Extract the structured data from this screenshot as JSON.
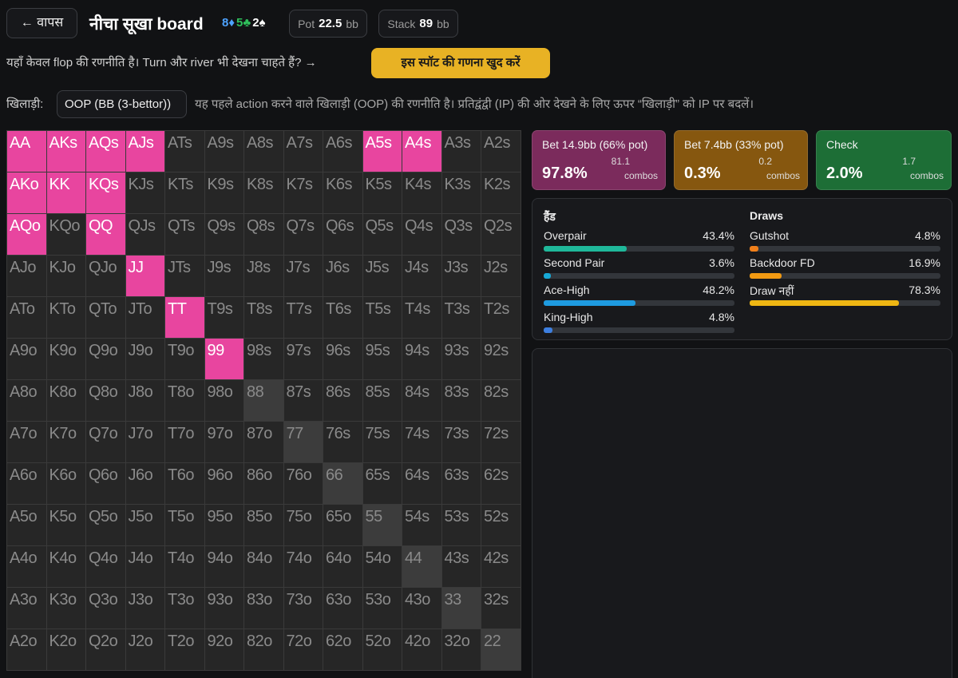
{
  "header": {
    "back_button": "← वापस",
    "title": "नीचा सूखा board",
    "board": [
      {
        "text": "8♦",
        "color": "#4da3ff"
      },
      {
        "text": "5♣",
        "color": "#2fbf5b"
      },
      {
        "text": "2♠",
        "color": "#ffffff"
      }
    ],
    "pot": {
      "label": "Pot",
      "value": "22.5",
      "unit": "bb"
    },
    "stack": {
      "label": "Stack",
      "value": "89",
      "unit": "bb"
    }
  },
  "notice": {
    "text": "यहाँ केवल flop की रणनीति है। Turn और river भी देखना चाहते हैं? →",
    "button": "इस स्पॉट की गणना खुद करें"
  },
  "player": {
    "label": "खिलाड़ी:",
    "select": "OOP (BB (3-bettor))",
    "description": "यह पहले action करने वाले खिलाड़ी (OOP) की रणनीति है। प्रतिद्वंद्वी (IP) की ओर देखने के लिए ऊपर “खिलाड़ी” को IP पर बदलें।"
  },
  "grid": {
    "rows": [
      {
        "hands": [
          "AA",
          "AKs",
          "AQs",
          "AJs",
          "ATs",
          "A9s",
          "A8s",
          "A7s",
          "A6s",
          "A5s",
          "A4s",
          "A3s",
          "A2s"
        ],
        "fills": [
          "#e8459f",
          "#e8459f",
          "#e8459f",
          "#e8459f",
          "#262626",
          "#262626",
          "#262626",
          "#262626",
          "#262626",
          "#e8459f",
          "#e8459f",
          "#262626",
          "#262626"
        ]
      },
      {
        "hands": [
          "AKo",
          "KK",
          "KQs",
          "KJs",
          "KTs",
          "K9s",
          "K8s",
          "K7s",
          "K6s",
          "K5s",
          "K4s",
          "K3s",
          "K2s"
        ],
        "fills": [
          "#e8459f",
          "#e8459f",
          "#e8459f",
          "#262626",
          "#262626",
          "#262626",
          "#262626",
          "#262626",
          "#262626",
          "#262626",
          "#262626",
          "#262626",
          "#262626"
        ]
      },
      {
        "hands": [
          "AQo",
          "KQo",
          "QQ",
          "QJs",
          "QTs",
          "Q9s",
          "Q8s",
          "Q7s",
          "Q6s",
          "Q5s",
          "Q4s",
          "Q3s",
          "Q2s"
        ],
        "fills": [
          "#e8459f",
          "#262626",
          "#e8459f",
          "#262626",
          "#262626",
          "#262626",
          "#262626",
          "#262626",
          "#262626",
          "#262626",
          "#262626",
          "#262626",
          "#262626"
        ]
      },
      {
        "hands": [
          "AJo",
          "KJo",
          "QJo",
          "JJ",
          "JTs",
          "J9s",
          "J8s",
          "J7s",
          "J6s",
          "J5s",
          "J4s",
          "J3s",
          "J2s"
        ],
        "fills": [
          "#262626",
          "#262626",
          "#262626",
          "#e8459f",
          "#262626",
          "#262626",
          "#262626",
          "#262626",
          "#262626",
          "#262626",
          "#262626",
          "#262626",
          "#262626"
        ]
      },
      {
        "hands": [
          "ATo",
          "KTo",
          "QTo",
          "JTo",
          "TT",
          "T9s",
          "T8s",
          "T7s",
          "T6s",
          "T5s",
          "T4s",
          "T3s",
          "T2s"
        ],
        "fills": [
          "#262626",
          "#262626",
          "#262626",
          "#262626",
          "#e8459f",
          "#262626",
          "#262626",
          "#262626",
          "#262626",
          "#262626",
          "#262626",
          "#262626",
          "#262626"
        ]
      },
      {
        "hands": [
          "A9o",
          "K9o",
          "Q9o",
          "J9o",
          "T9o",
          "99",
          "98s",
          "97s",
          "96s",
          "95s",
          "94s",
          "93s",
          "92s"
        ],
        "fills": [
          "#262626",
          "#262626",
          "#262626",
          "#262626",
          "#262626",
          "#e8459f",
          "#262626",
          "#262626",
          "#262626",
          "#262626",
          "#262626",
          "#262626",
          "#262626"
        ]
      },
      {
        "hands": [
          "A8o",
          "K8o",
          "Q8o",
          "J8o",
          "T8o",
          "98o",
          "88",
          "87s",
          "86s",
          "85s",
          "84s",
          "83s",
          "82s"
        ],
        "fills": [
          "#262626",
          "#262626",
          "#262626",
          "#262626",
          "#262626",
          "#262626",
          "#3c3c3c",
          "#262626",
          "#262626",
          "#262626",
          "#262626",
          "#262626",
          "#262626"
        ]
      },
      {
        "hands": [
          "A7o",
          "K7o",
          "Q7o",
          "J7o",
          "T7o",
          "97o",
          "87o",
          "77",
          "76s",
          "75s",
          "74s",
          "73s",
          "72s"
        ],
        "fills": [
          "#262626",
          "#262626",
          "#262626",
          "#262626",
          "#262626",
          "#262626",
          "#262626",
          "#3c3c3c",
          "#262626",
          "#262626",
          "#262626",
          "#262626",
          "#262626"
        ]
      },
      {
        "hands": [
          "A6o",
          "K6o",
          "Q6o",
          "J6o",
          "T6o",
          "96o",
          "86o",
          "76o",
          "66",
          "65s",
          "64s",
          "63s",
          "62s"
        ],
        "fills": [
          "#262626",
          "#262626",
          "#262626",
          "#262626",
          "#262626",
          "#262626",
          "#262626",
          "#262626",
          "#3c3c3c",
          "#262626",
          "#262626",
          "#262626",
          "#262626"
        ]
      },
      {
        "hands": [
          "A5o",
          "K5o",
          "Q5o",
          "J5o",
          "T5o",
          "95o",
          "85o",
          "75o",
          "65o",
          "55",
          "54s",
          "53s",
          "52s"
        ],
        "fills": [
          "#262626",
          "#262626",
          "#262626",
          "#262626",
          "#262626",
          "#262626",
          "#262626",
          "#262626",
          "#262626",
          "#3c3c3c",
          "#262626",
          "#262626",
          "#262626"
        ]
      },
      {
        "hands": [
          "A4o",
          "K4o",
          "Q4o",
          "J4o",
          "T4o",
          "94o",
          "84o",
          "74o",
          "64o",
          "54o",
          "44",
          "43s",
          "42s"
        ],
        "fills": [
          "#262626",
          "#262626",
          "#262626",
          "#262626",
          "#262626",
          "#262626",
          "#262626",
          "#262626",
          "#262626",
          "#262626",
          "#3c3c3c",
          "#262626",
          "#262626"
        ]
      },
      {
        "hands": [
          "A3o",
          "K3o",
          "Q3o",
          "J3o",
          "T3o",
          "93o",
          "83o",
          "73o",
          "63o",
          "53o",
          "43o",
          "33",
          "32s"
        ],
        "fills": [
          "#262626",
          "#262626",
          "#262626",
          "#262626",
          "#262626",
          "#262626",
          "#262626",
          "#262626",
          "#262626",
          "#262626",
          "#262626",
          "#3c3c3c",
          "#262626"
        ]
      },
      {
        "hands": [
          "A2o",
          "K2o",
          "Q2o",
          "J2o",
          "T2o",
          "92o",
          "82o",
          "72o",
          "62o",
          "52o",
          "42o",
          "32o",
          "22"
        ],
        "fills": [
          "#262626",
          "#262626",
          "#262626",
          "#262626",
          "#262626",
          "#262626",
          "#262626",
          "#262626",
          "#262626",
          "#262626",
          "#262626",
          "#262626",
          "#3c3c3c"
        ]
      }
    ]
  },
  "actions": [
    {
      "label": "Bet 14.9bb (66% pot)",
      "percent": "97.8%",
      "combos": "81.1",
      "combos_label": "combos",
      "color": "#7b2b5c"
    },
    {
      "label": "Bet 7.4bb (33% pot)",
      "percent": "0.3%",
      "combos": "0.2",
      "combos_label": "combos",
      "color": "#86570f"
    },
    {
      "label": "Check",
      "percent": "2.0%",
      "combos": "1.7",
      "combos_label": "combos",
      "color": "#1d6e36"
    }
  ],
  "breakdown": {
    "hands": {
      "title": "हैंड",
      "items": [
        {
          "name": "Overpair",
          "value": 43.4,
          "value_label": "43.4%",
          "color": "#1fb89a"
        },
        {
          "name": "Second Pair",
          "value": 3.6,
          "value_label": "3.6%",
          "color": "#17a9d6"
        },
        {
          "name": "Ace-High",
          "value": 48.2,
          "value_label": "48.2%",
          "color": "#1e9be0"
        },
        {
          "name": "King-High",
          "value": 4.8,
          "value_label": "4.8%",
          "color": "#3d7fe0"
        }
      ]
    },
    "draws": {
      "title": "Draws",
      "items": [
        {
          "name": "Gutshot",
          "value": 4.8,
          "value_label": "4.8%",
          "color": "#f07f1a"
        },
        {
          "name": "Backdoor FD",
          "value": 16.9,
          "value_label": "16.9%",
          "color": "#f29a12"
        },
        {
          "name": "Draw नहीं",
          "value": 78.3,
          "value_label": "78.3%",
          "color": "#efb713"
        }
      ]
    }
  }
}
